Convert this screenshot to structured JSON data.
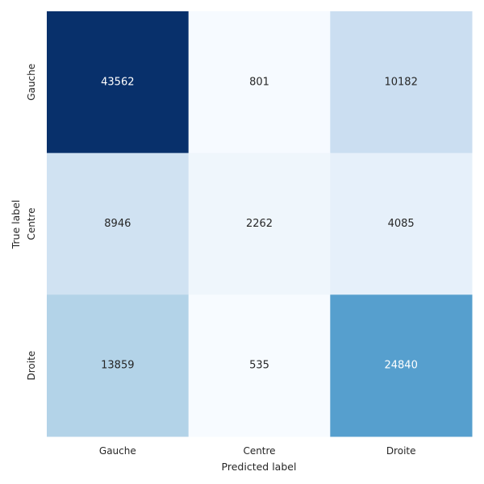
{
  "chart_data": {
    "type": "heatmap",
    "title": "",
    "xlabel": "Predicted label",
    "ylabel": "True label",
    "x_categories": [
      "Gauche",
      "Centre",
      "Droite"
    ],
    "y_categories": [
      "Gauche",
      "Centre",
      "Droite"
    ],
    "values": [
      [
        43562,
        801,
        10182
      ],
      [
        8946,
        2262,
        4085
      ],
      [
        13859,
        535,
        24840
      ]
    ],
    "colormap": "Blues",
    "color_range": [
      535,
      43562
    ],
    "grid": false,
    "colorbar": false
  }
}
